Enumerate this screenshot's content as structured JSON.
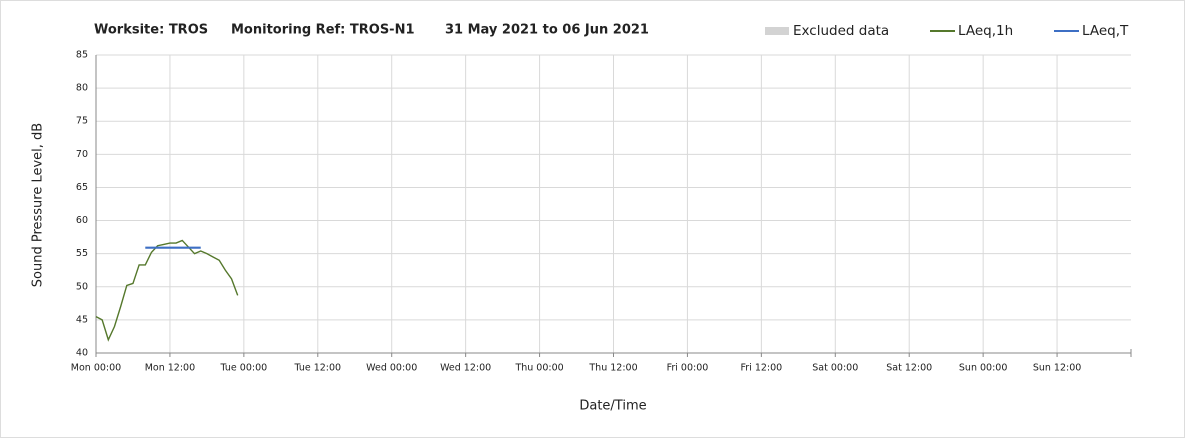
{
  "chart_data": {
    "type": "line",
    "title": [
      "Worksite: TROS",
      "Monitoring Ref: TROS-N1",
      "31 May 2021 to 06 Jun 2021"
    ],
    "y_label": "Sound Pressure Level, dB",
    "x_label": "Date/Time",
    "xlim": [
      0,
      168
    ],
    "xticks": [
      {
        "value": 0,
        "label": "Mon 00:00"
      },
      {
        "value": 12,
        "label": "Mon 12:00"
      },
      {
        "value": 24,
        "label": "Tue 00:00"
      },
      {
        "value": 36,
        "label": "Tue 12:00"
      },
      {
        "value": 48,
        "label": "Wed 00:00"
      },
      {
        "value": 60,
        "label": "Wed 12:00"
      },
      {
        "value": 72,
        "label": "Thu 00:00"
      },
      {
        "value": 84,
        "label": "Thu 12:00"
      },
      {
        "value": 96,
        "label": "Fri 00:00"
      },
      {
        "value": 108,
        "label": "Fri 12:00"
      },
      {
        "value": 120,
        "label": "Sat 00:00"
      },
      {
        "value": 132,
        "label": "Sat 12:00"
      },
      {
        "value": 144,
        "label": "Sun 00:00"
      },
      {
        "value": 156,
        "label": "Sun 12:00"
      }
    ],
    "ylim": [
      40,
      85
    ],
    "yticks": [
      40,
      45,
      50,
      55,
      60,
      65,
      70,
      75,
      80,
      85
    ],
    "grid": true,
    "series": [
      {
        "name": "Excluded data",
        "color": "#d3d3d3",
        "x": [],
        "values": []
      },
      {
        "name": "LAeq,1h",
        "color": "#55782c",
        "x": [
          0,
          1,
          2,
          3,
          4,
          5,
          6,
          7,
          8,
          9,
          10,
          11,
          12,
          13,
          14,
          15,
          16,
          17,
          18,
          19,
          20,
          21,
          22,
          23
        ],
        "values": [
          45.5,
          45,
          42,
          44,
          47,
          50.2,
          50.5,
          53.3,
          53.3,
          55.2,
          56.2,
          56.4,
          56.6,
          56.6,
          57,
          56,
          55,
          55.4,
          55,
          54.5,
          54,
          52.5,
          51.2,
          48.7
        ]
      },
      {
        "name": "LAeq,T",
        "color": "#3d6fc4",
        "x": [
          8,
          17
        ],
        "values": [
          55.9,
          55.9
        ]
      }
    ]
  }
}
